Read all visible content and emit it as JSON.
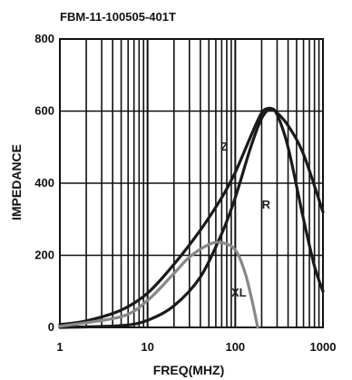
{
  "chart_data": {
    "type": "line",
    "title": "FBM-11-100505-401T",
    "xlabel": "FREQ(MHZ)",
    "ylabel": "IMPEDANCE",
    "x_scale": "log",
    "xlim": [
      1,
      1000
    ],
    "ylim": [
      0,
      800
    ],
    "x_ticks": [
      {
        "value": 1,
        "label": "1"
      },
      {
        "value": 10,
        "label": "10"
      },
      {
        "value": 100,
        "label": "100"
      },
      {
        "value": 1000,
        "label": "1000"
      }
    ],
    "y_ticks": [
      {
        "value": 0,
        "label": "0"
      },
      {
        "value": 200,
        "label": "200"
      },
      {
        "value": 400,
        "label": "400"
      },
      {
        "value": 600,
        "label": "600"
      },
      {
        "value": 800,
        "label": "800"
      }
    ],
    "grid": true,
    "series": [
      {
        "name": "Z",
        "color": "#1a1a1a",
        "x": [
          1,
          2,
          5,
          10,
          20,
          40,
          70,
          100,
          150,
          200,
          250,
          300,
          400,
          600,
          1000
        ],
        "y": [
          8,
          18,
          48,
          95,
          175,
          270,
          360,
          430,
          530,
          595,
          608,
          595,
          560,
          480,
          320
        ]
      },
      {
        "name": "R",
        "color": "#1a1a1a",
        "x": [
          1,
          5,
          10,
          20,
          40,
          70,
          100,
          150,
          200,
          250,
          300,
          400,
          600,
          800,
          1000
        ],
        "y": [
          0,
          5,
          20,
          60,
          140,
          260,
          360,
          500,
          580,
          605,
          590,
          500,
          300,
          170,
          100
        ]
      },
      {
        "name": "XL",
        "color": "#888888",
        "x": [
          1,
          5,
          10,
          20,
          30,
          50,
          70,
          100,
          130,
          160,
          180
        ],
        "y": [
          3,
          30,
          75,
          150,
          195,
          230,
          235,
          215,
          150,
          60,
          0
        ]
      }
    ],
    "series_labels": [
      {
        "series": "Z",
        "text": "Z",
        "x": 75,
        "y": 490
      },
      {
        "series": "R",
        "text": "R",
        "x": 225,
        "y": 330
      },
      {
        "series": "XL",
        "text": "XL",
        "x": 110,
        "y": 85
      }
    ]
  }
}
